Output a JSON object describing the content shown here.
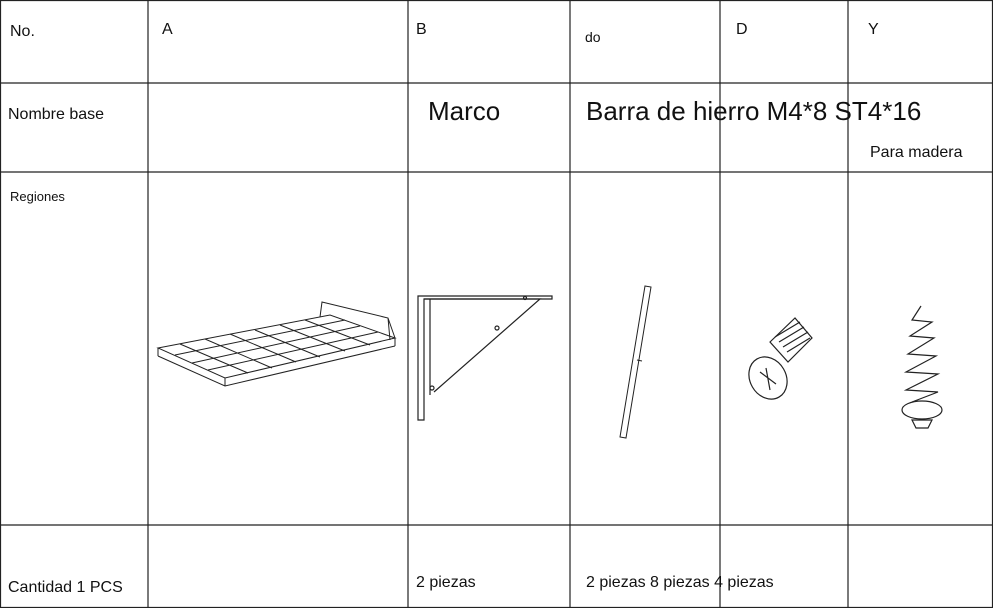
{
  "table": {
    "header": [
      "No.",
      "A",
      "B",
      "do",
      "D",
      "Y"
    ],
    "name_row": {
      "label": "Nombre base",
      "b": "Marco",
      "c": "Barra de hierro M4*8 ST4*16",
      "y_note": "Para madera"
    },
    "region_row": {
      "label": "Regiones"
    },
    "quantity_row": {
      "label": "Cantidad 1 PCS",
      "b": "2 piezas",
      "c": "2 piezas 8 piezas 4 piezas"
    }
  }
}
